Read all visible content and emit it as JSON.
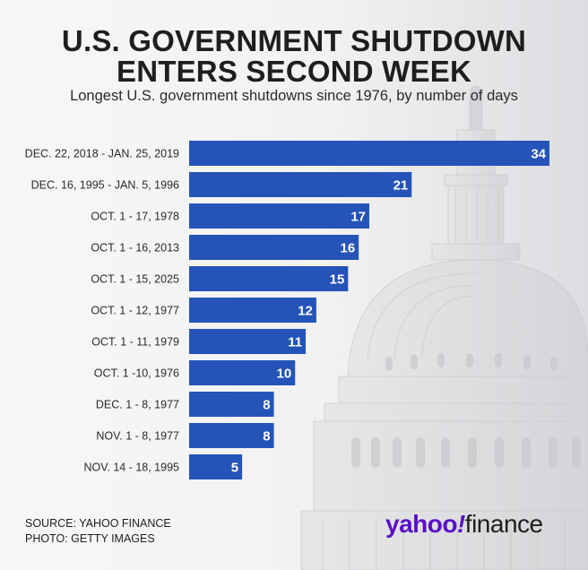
{
  "title_line1": "U.S. GOVERNMENT SHUTDOWN",
  "title_line2": "ENTERS SECOND WEEK",
  "subtitle": "Longest U.S. government shutdowns since 1976, by number of days",
  "footer": {
    "source": "SOURCE: YAHOO FINANCE",
    "photo": "PHOTO: GETTY IMAGES"
  },
  "logo": {
    "part1": "yahoo",
    "bang": "!",
    "part2": "finance"
  },
  "colors": {
    "bar": "#2554b8",
    "background": "#f4f4f5",
    "brand": "#5a0fc8"
  },
  "chart_data": {
    "type": "bar",
    "orientation": "horizontal",
    "title": "Longest U.S. government shutdowns since 1976, by number of days",
    "xlabel": "",
    "ylabel": "",
    "xlim": [
      0,
      34
    ],
    "grid": false,
    "categories": [
      "DEC. 22, 2018 - JAN. 25, 2019",
      "DEC. 16, 1995 - JAN. 5, 1996",
      "OCT. 1 - 17, 1978",
      "OCT. 1 - 16, 2013",
      "OCT. 1 - 15, 2025",
      "OCT. 1 - 12, 1977",
      "OCT. 1 - 11, 1979",
      "OCT. 1 -10, 1976",
      "DEC. 1 - 8, 1977",
      "NOV. 1 - 8, 1977",
      "NOV. 14 - 18, 1995"
    ],
    "values": [
      34,
      21,
      17,
      16,
      15,
      12,
      11,
      10,
      8,
      8,
      5
    ]
  }
}
